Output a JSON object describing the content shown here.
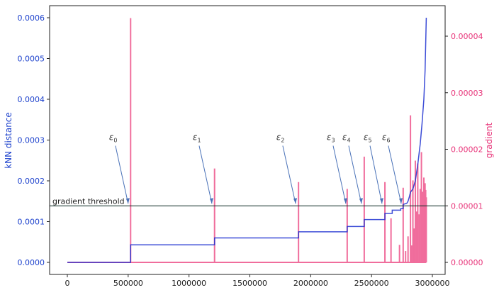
{
  "chart_data": {
    "type": "line",
    "xlim": [
      -150000,
      3100000
    ],
    "xticks": [
      0,
      500000,
      1000000,
      1500000,
      2000000,
      2500000,
      3000000
    ],
    "ylabel_left": "kNN distance",
    "ylabel_right": "gradient",
    "ylim_left": [
      -3e-05,
      0.00063
    ],
    "yticks_left": [
      "0.0000",
      "0.0001",
      "0.0002",
      "0.0003",
      "0.0004",
      "0.0005",
      "0.0006"
    ],
    "ylim_right": [
      -2e-06,
      4.5e-05
    ],
    "yticks_right": [
      "0.00000",
      "0.00001",
      "0.00002",
      "0.00003",
      "0.00004"
    ],
    "colors": {
      "knn": "#1c2fd0",
      "gradient": "#f06d9c",
      "left_axis": "#1a3fcc",
      "right_axis": "#e8357a",
      "threshold": "#0d2b24",
      "arrow": "#4a72b8"
    },
    "threshold": {
      "label": "gradient threshold",
      "value": 1e-05
    },
    "knn_series": {
      "name": "kNN distance",
      "x": [
        0,
        520000,
        520000,
        1210000,
        1210000,
        1900000,
        1900000,
        2300000,
        2300000,
        2440000,
        2440000,
        2610000,
        2610000,
        2670000,
        2670000,
        2740000,
        2740000,
        2760000,
        2760000,
        2790000,
        2800000,
        2810000,
        2820000,
        2840000,
        2860000,
        2880000,
        2900000,
        2915000,
        2930000,
        2940000,
        2950000
      ],
      "y": [
        0,
        0,
        4.3e-05,
        4.3e-05,
        6e-05,
        6e-05,
        7.5e-05,
        7.5e-05,
        8.8e-05,
        8.8e-05,
        0.000105,
        0.000105,
        0.00012,
        0.00012,
        0.000128,
        0.000128,
        0.000132,
        0.000132,
        0.000142,
        0.000145,
        0.00015,
        0.00016,
        0.000172,
        0.00018,
        0.0002,
        0.00024,
        0.00029,
        0.00034,
        0.0004,
        0.00047,
        0.0006
      ]
    },
    "gradient_series": {
      "name": "gradient",
      "x": [
        520000,
        1210000,
        1900000,
        2300000,
        2440000,
        2610000,
        2660000,
        2730000,
        2760000,
        2780000,
        2800000,
        2820000,
        2830000,
        2840000,
        2850000,
        2860000,
        2870000,
        2880000,
        2890000,
        2900000,
        2910000,
        2920000,
        2930000,
        2935000,
        2940000,
        2945000,
        2950000
      ],
      "y": [
        4.32e-05,
        1.66e-05,
        1.42e-05,
        1.3e-05,
        1.87e-05,
        1.42e-05,
        7.8e-06,
        3.1e-06,
        1.32e-05,
        2e-06,
        4.6e-06,
        2.6e-05,
        3e-06,
        1.45e-05,
        6e-06,
        1.8e-05,
        9e-06,
        1.75e-05,
        8.5e-06,
        1.3e-05,
        1.95e-05,
        1.25e-05,
        1.5e-05,
        1.35e-05,
        1.4e-05,
        1.28e-05,
        1.15e-05
      ]
    },
    "annotations": [
      {
        "label": "ε",
        "sub": "0",
        "text_x": 378000,
        "text_y": 0.0003,
        "arrow_x": 500000
      },
      {
        "label": "ε",
        "sub": "1",
        "text_x": 1066000,
        "text_y": 0.0003,
        "arrow_x": 1188000
      },
      {
        "label": "ε",
        "sub": "2",
        "text_x": 1753000,
        "text_y": 0.0003,
        "arrow_x": 1876000
      },
      {
        "label": "ε",
        "sub": "3",
        "text_x": 2167000,
        "text_y": 0.0003,
        "arrow_x": 2289000
      },
      {
        "label": "ε",
        "sub": "4",
        "text_x": 2295000,
        "text_y": 0.0003,
        "arrow_x": 2417000
      },
      {
        "label": "ε",
        "sub": "5",
        "text_x": 2470000,
        "text_y": 0.0003,
        "arrow_x": 2586000
      },
      {
        "label": "ε",
        "sub": "6",
        "text_x": 2621000,
        "text_y": 0.0003,
        "arrow_x": 2744000
      }
    ]
  }
}
